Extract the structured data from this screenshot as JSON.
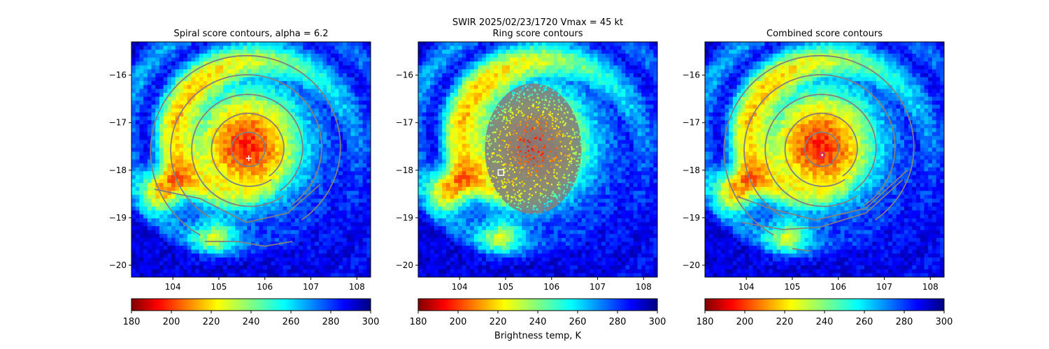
{
  "suptitle_line1": "SWIR  2025/02/23/1720    Vmax = 45 kt",
  "colorbar_label": "Brightness temp, K",
  "colorbar": {
    "range": [
      180,
      300
    ],
    "ticks": [
      "180",
      "200",
      "220",
      "240",
      "260",
      "280",
      "300"
    ],
    "colormap": "jet_r"
  },
  "chart_data": [
    {
      "type": "heatmap",
      "title": "Spiral score contours, alpha =  6.2",
      "xlim": [
        103.1,
        108.3
      ],
      "ylim": [
        -20.25,
        -15.3
      ],
      "xticks": [
        "104",
        "105",
        "106",
        "107",
        "108"
      ],
      "yticks": [
        "−16",
        "−17",
        "−18",
        "−19",
        "−20"
      ],
      "marker": {
        "shape": "plus",
        "color": "#ffffff",
        "x": 105.65,
        "y": -17.75
      },
      "contour_color": "#808080"
    },
    {
      "type": "heatmap",
      "title": "Ring score contours",
      "xlim": [
        103.1,
        108.3
      ],
      "ylim": [
        -20.25,
        -15.3
      ],
      "xticks": [
        "104",
        "105",
        "106",
        "107",
        "108"
      ],
      "yticks": [
        "−16",
        "−17",
        "−18",
        "−19",
        "−20"
      ],
      "marker": {
        "shape": "square",
        "color": "#ffffff",
        "x": 104.9,
        "y": -18.05
      },
      "contour_color": "#808080"
    },
    {
      "type": "heatmap",
      "title": "Combined score contours",
      "xlim": [
        103.1,
        108.3
      ],
      "ylim": [
        -20.25,
        -15.3
      ],
      "xticks": [
        "104",
        "105",
        "106",
        "107",
        "108"
      ],
      "yticks": [
        "−16",
        "−17",
        "−18",
        "−19",
        "−20"
      ],
      "marker": {
        "shape": "circle",
        "color": "#d03070",
        "x": 105.65,
        "y": -17.68
      },
      "contour_color": "#808080"
    }
  ],
  "storm_center": {
    "x": 105.6,
    "y": -17.5
  }
}
